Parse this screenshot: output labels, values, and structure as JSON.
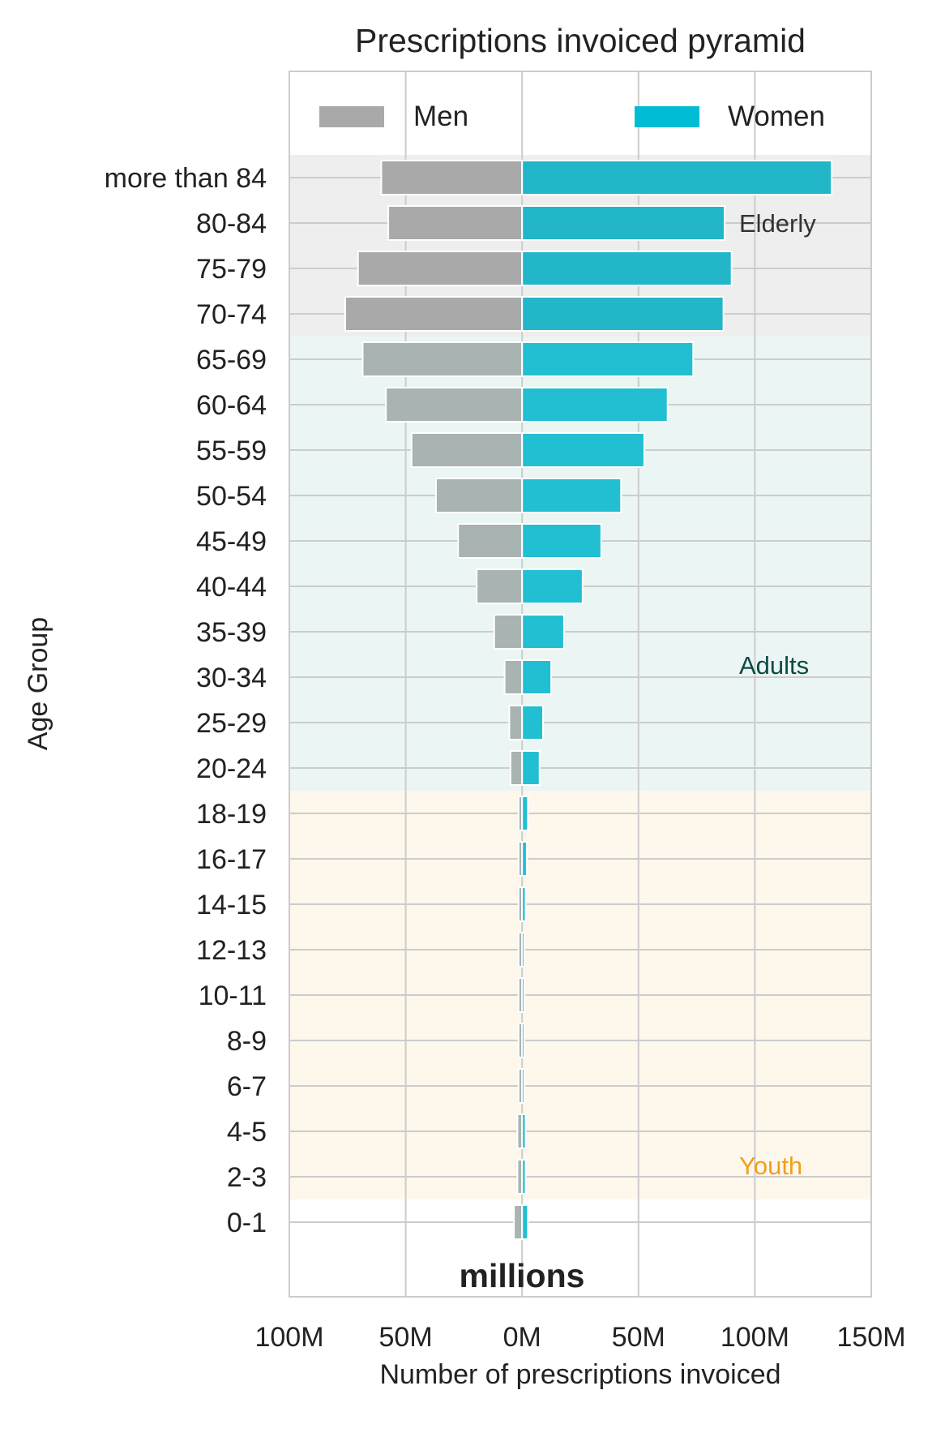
{
  "chart_data": {
    "type": "bar",
    "orientation": "horizontal-pyramid",
    "title": "Prescriptions invoiced pyramid",
    "xlabel": "Number of prescriptions invoiced",
    "ylabel": "Age Group",
    "x_unit_label": "millions",
    "xlim": [
      -100,
      150
    ],
    "x_ticks": [
      -100,
      -50,
      0,
      50,
      100,
      150
    ],
    "x_tick_labels": [
      "100M",
      "50M",
      "0M",
      "50M",
      "100M",
      "150M"
    ],
    "grid": true,
    "legend_placement": "top",
    "categories": [
      "0-1",
      "2-3",
      "4-5",
      "6-7",
      "8-9",
      "10-11",
      "12-13",
      "14-15",
      "16-17",
      "18-19",
      "20-24",
      "25-29",
      "30-34",
      "35-39",
      "40-44",
      "45-49",
      "50-54",
      "55-59",
      "60-64",
      "65-69",
      "70-74",
      "75-79",
      "80-84",
      "more than 84"
    ],
    "series": [
      {
        "name": "Men",
        "side": "left",
        "color": "#a9a9a9",
        "values": [
          3.5,
          2.0,
          2.0,
          1.5,
          1.5,
          1.5,
          1.5,
          1.5,
          1.5,
          1.5,
          5.0,
          5.5,
          7.5,
          12.0,
          19.5,
          27.5,
          37.0,
          47.5,
          58.5,
          68.5,
          76.0,
          70.5,
          57.5,
          60.5
        ]
      },
      {
        "name": "Women",
        "side": "right",
        "color": "#00bcd4",
        "values": [
          2.5,
          1.5,
          1.5,
          1.0,
          1.0,
          1.0,
          1.0,
          1.5,
          2.0,
          2.5,
          7.5,
          9.0,
          12.5,
          18.0,
          26.0,
          34.0,
          42.5,
          52.5,
          62.5,
          73.5,
          86.5,
          90.0,
          87.0,
          133.0
        ]
      }
    ],
    "bands": [
      {
        "label": "Elderly",
        "from": "70-74",
        "to": "more than 84",
        "fill": "#eeeeee",
        "text_color": "#333333"
      },
      {
        "label": "Adults",
        "from": "20-24",
        "to": "65-69",
        "fill": "#ebf5f4",
        "text_color": "#0d4a44"
      },
      {
        "label": "Youth",
        "from": "2-3",
        "to": "18-19",
        "fill": "#fdf7ec",
        "text_color": "#f0a020"
      }
    ]
  }
}
